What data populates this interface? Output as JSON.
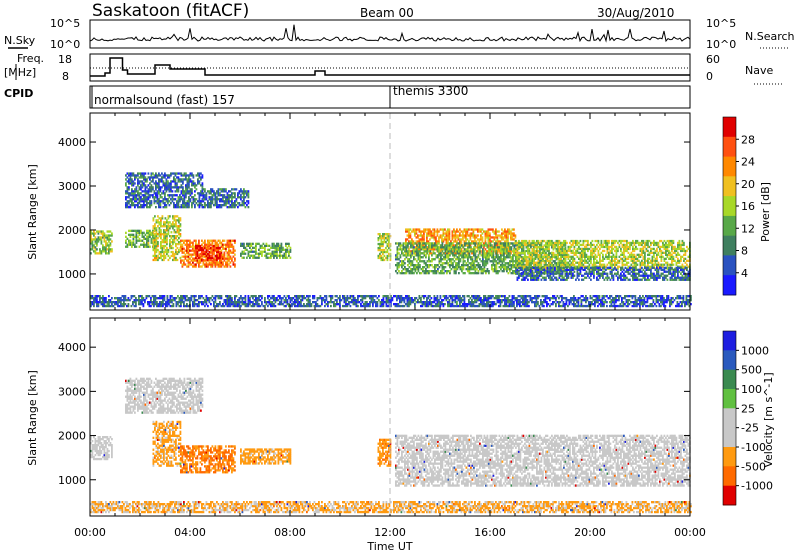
{
  "header": {
    "title": "Saskatoon (fitACF)",
    "beam": "Beam 00",
    "date": "30/Aug/2010"
  },
  "left_labels": {
    "nsky": "N.Sky",
    "freq": "Freq.",
    "freq_unit": "[MHz]",
    "cpid": "CPID"
  },
  "right_labels": {
    "nsearch": "N.Search",
    "nave": "Nave"
  },
  "nsky_axis": [
    "10^5",
    "10^0"
  ],
  "nsearch_axis": [
    "10^5",
    "10^0"
  ],
  "freq_axis": [
    "18",
    "8"
  ],
  "nave_axis": [
    "60",
    "0"
  ],
  "cpid_modes": [
    "normalsound (fast) 157",
    "themis 3300"
  ],
  "xlabel": "Time UT",
  "colors": {
    "power": [
      "#1a1aff",
      "#2a52c0",
      "#3f7f5f",
      "#58a848",
      "#a8d828",
      "#f0c020",
      "#ff8800",
      "#ff5010",
      "#e00000"
    ],
    "velocity": [
      "#1e1ee0",
      "#2a5abe",
      "#3a8a50",
      "#60c040",
      "#c8c8c8",
      "#c8c8c8",
      "#ff9a10",
      "#ff6a00",
      "#e00000"
    ]
  },
  "chart_data": [
    {
      "type": "heatmap",
      "panel": "power",
      "ylabel": "Slant Range [km]",
      "xlabel": "Time UT",
      "x_ticks": [
        "00:00",
        "04:00",
        "08:00",
        "12:00",
        "16:00",
        "20:00",
        "00:00"
      ],
      "x_range_hours": [
        0,
        24
      ],
      "y_ticks": [
        1000,
        2000,
        3000,
        4000
      ],
      "ylim": [
        180,
        4660
      ],
      "colorbar": {
        "label": "Power [dB]",
        "ticks": [
          "4",
          "8",
          "12",
          "16",
          "20",
          "24",
          "28"
        ],
        "range": [
          0,
          32
        ]
      },
      "regions": [
        {
          "t0": 0.0,
          "t1": 24.0,
          "r0": 250,
          "r1": 520,
          "v": 6
        },
        {
          "t0": 0.0,
          "t1": 0.9,
          "r0": 1450,
          "r1": 1950,
          "v": 15
        },
        {
          "t0": 1.4,
          "t1": 2.6,
          "r0": 1600,
          "r1": 2000,
          "v": 13
        },
        {
          "t0": 1.4,
          "t1": 4.5,
          "r0": 2500,
          "r1": 3300,
          "v": 7
        },
        {
          "t0": 2.5,
          "t1": 3.6,
          "r0": 1300,
          "r1": 2300,
          "v": 17
        },
        {
          "t0": 3.6,
          "t1": 5.8,
          "r0": 1150,
          "r1": 1750,
          "v": 24
        },
        {
          "t0": 4.2,
          "t1": 5.2,
          "r0": 1300,
          "r1": 1650,
          "v": 29
        },
        {
          "t0": 4.5,
          "t1": 6.3,
          "r0": 2500,
          "r1": 2950,
          "v": 7
        },
        {
          "t0": 6.0,
          "t1": 8.0,
          "r0": 1350,
          "r1": 1700,
          "v": 12
        },
        {
          "t0": 11.5,
          "t1": 12.0,
          "r0": 1300,
          "r1": 1900,
          "v": 16
        },
        {
          "t0": 12.6,
          "t1": 17.0,
          "r0": 1450,
          "r1": 2000,
          "v": 22
        },
        {
          "t0": 12.2,
          "t1": 19.0,
          "r0": 1000,
          "r1": 1700,
          "v": 12
        },
        {
          "t0": 17.0,
          "t1": 24.0,
          "r0": 1100,
          "r1": 1750,
          "v": 16
        },
        {
          "t0": 17.0,
          "t1": 24.0,
          "r0": 850,
          "r1": 1150,
          "v": 7
        }
      ]
    },
    {
      "type": "heatmap",
      "panel": "velocity",
      "ylabel": "Slant Range [km]",
      "xlabel": "Time UT",
      "x_ticks": [
        "00:00",
        "04:00",
        "08:00",
        "12:00",
        "16:00",
        "20:00",
        "00:00"
      ],
      "x_range_hours": [
        0,
        24
      ],
      "y_ticks": [
        1000,
        2000,
        3000,
        4000
      ],
      "ylim": [
        180,
        4660
      ],
      "colorbar": {
        "label": "Velocity [m s^-1]",
        "ticks": [
          "1000",
          "500",
          "100",
          "25",
          "-25",
          "-100",
          "-500",
          "-1000"
        ]
      },
      "regions": [
        {
          "t0": 0.0,
          "t1": 24.0,
          "r0": 250,
          "r1": 520,
          "v": -100
        },
        {
          "t0": 0.0,
          "t1": 0.9,
          "r0": 1450,
          "r1": 1950,
          "v": 0
        },
        {
          "t0": 1.4,
          "t1": 4.5,
          "r0": 2500,
          "r1": 3300,
          "v": 0
        },
        {
          "t0": 2.5,
          "t1": 3.6,
          "r0": 1300,
          "r1": 2300,
          "v": -150
        },
        {
          "t0": 3.6,
          "t1": 5.8,
          "r0": 1150,
          "r1": 1750,
          "v": -300
        },
        {
          "t0": 6.0,
          "t1": 8.0,
          "r0": 1350,
          "r1": 1700,
          "v": -150
        },
        {
          "t0": 11.5,
          "t1": 12.0,
          "r0": 1300,
          "r1": 1900,
          "v": -250
        },
        {
          "t0": 12.2,
          "t1": 24.0,
          "r0": 850,
          "r1": 2000,
          "v": 0
        }
      ]
    }
  ]
}
